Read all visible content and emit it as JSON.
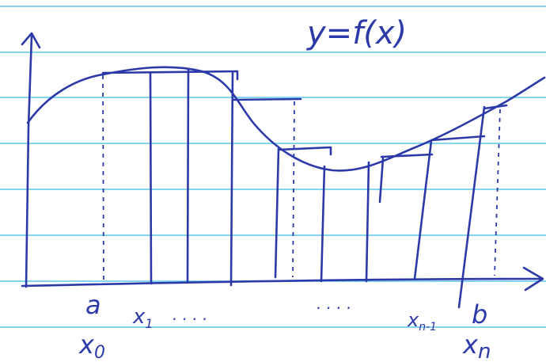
{
  "title": "y=f(x)",
  "labels": {
    "a": "a",
    "x0": {
      "base": "x",
      "sub": "0"
    },
    "x1": {
      "base": "x",
      "sub": "1"
    },
    "dots_left": ". . . .",
    "dots_right": ". . . .",
    "xn_1": {
      "base": "x",
      "sub": "n-1"
    },
    "b": "b",
    "xn": {
      "base": "x",
      "sub": "n"
    }
  }
}
